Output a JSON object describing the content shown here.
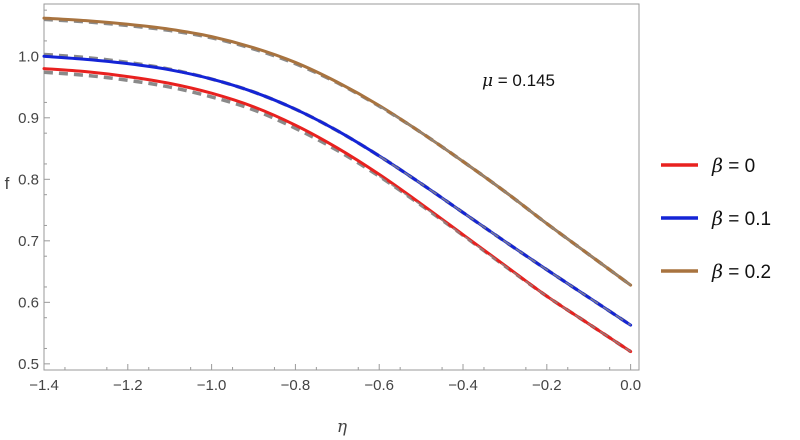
{
  "chart_data": {
    "type": "line",
    "title": "",
    "xlabel": "η",
    "ylabel": "f",
    "xlim": [
      -1.4,
      0.02
    ],
    "ylim": [
      0.49,
      1.085
    ],
    "x_ticks": [
      "-1.4",
      "-1.2",
      "-1.0",
      "-0.8",
      "-0.6",
      "-0.4",
      "-0.2",
      "0.0"
    ],
    "y_ticks": [
      "0.5",
      "0.6",
      "0.7",
      "0.8",
      "0.9",
      "1.0"
    ],
    "grid": false,
    "legend_position": "right",
    "annotation": {
      "symbol": "μ",
      "text": " = 0.145"
    },
    "x": [
      -1.4,
      -1.3,
      -1.2,
      -1.1,
      -1.0,
      -0.9,
      -0.8,
      -0.7,
      -0.6,
      -0.5,
      -0.4,
      -0.3,
      -0.2,
      -0.1,
      0.0
    ],
    "series": [
      {
        "name": "β = 0",
        "symbol": "β",
        "label": " = 0",
        "color": "#e8211f",
        "values": [
          0.98,
          0.975,
          0.967,
          0.956,
          0.94,
          0.918,
          0.888,
          0.851,
          0.808,
          0.76,
          0.71,
          0.66,
          0.61,
          0.565,
          0.52
        ],
        "approx_values": [
          0.974,
          0.969,
          0.961,
          0.95,
          0.934,
          0.913,
          0.883,
          0.847,
          0.805,
          0.758,
          0.709,
          0.659,
          0.61,
          0.565,
          0.52
        ]
      },
      {
        "name": "β = 0.1",
        "symbol": "β",
        "label": " = 0.1",
        "color": "#1424d6",
        "values": [
          1.0,
          0.995,
          0.988,
          0.978,
          0.963,
          0.942,
          0.914,
          0.879,
          0.838,
          0.793,
          0.746,
          0.699,
          0.653,
          0.608,
          0.563
        ],
        "approx_values": [
          1.003,
          0.998,
          0.99,
          0.979,
          0.963,
          0.942,
          0.914,
          0.879,
          0.838,
          0.793,
          0.746,
          0.699,
          0.653,
          0.608,
          0.563
        ]
      },
      {
        "name": "β = 0.2",
        "symbol": "β",
        "label": " = 0.2",
        "color": "#a8733f",
        "values": [
          1.062,
          1.058,
          1.052,
          1.044,
          1.032,
          1.014,
          0.99,
          0.958,
          0.92,
          0.876,
          0.829,
          0.78,
          0.728,
          0.678,
          0.628
        ],
        "approx_values": [
          1.06,
          1.056,
          1.05,
          1.042,
          1.03,
          1.012,
          0.988,
          0.957,
          0.919,
          0.876,
          0.829,
          0.78,
          0.728,
          0.678,
          0.628
        ]
      }
    ],
    "approx_color": "#8a8a8a"
  }
}
